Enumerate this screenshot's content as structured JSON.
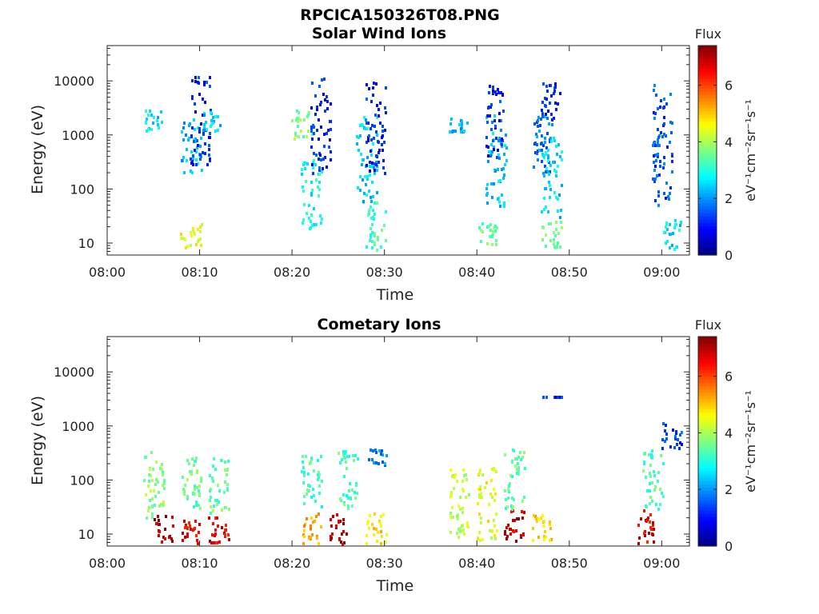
{
  "figure": {
    "title": "RPCICA150326T08.PNG"
  },
  "chart_data": [
    {
      "type": "heatmap",
      "title": "Solar Wind Ions",
      "xlabel": "Time",
      "ylabel": "Energy (eV)",
      "x_ticks": [
        "08:00",
        "08:10",
        "08:20",
        "08:30",
        "08:40",
        "08:50",
        "09:00"
      ],
      "xlim_minutes_after_0800": [
        0,
        63
      ],
      "y_scale": "log",
      "y_ticks": [
        "10",
        "100",
        "1000",
        "10000"
      ],
      "ylim": [
        6,
        45000
      ],
      "colorbar": {
        "title": "Flux",
        "unit": "eV⁻¹cm⁻²sr⁻¹s⁻¹",
        "ticks": [
          "0",
          "2",
          "4",
          "6"
        ],
        "range": [
          0,
          7.4
        ],
        "colormap": "jet"
      },
      "data_clusters": [
        {
          "time": "08:05",
          "energy_min": 1200,
          "energy_max": 3000,
          "flux": 2.6
        },
        {
          "time": "08:09",
          "energy_min": 200,
          "energy_max": 2000,
          "flux": 2.3
        },
        {
          "time": "08:09",
          "energy_min": 8,
          "energy_max": 25,
          "flux": 4.5
        },
        {
          "time": "08:10",
          "energy_min": 300,
          "energy_max": 13000,
          "flux": 1.2
        },
        {
          "time": "08:11",
          "energy_min": 1200,
          "energy_max": 3000,
          "flux": 2.4
        },
        {
          "time": "08:21",
          "energy_min": 800,
          "energy_max": 3000,
          "flux": 3.6
        },
        {
          "time": "08:22",
          "energy_min": 20,
          "energy_max": 400,
          "flux": 2.8
        },
        {
          "time": "08:23",
          "energy_min": 200,
          "energy_max": 13000,
          "flux": 1.2
        },
        {
          "time": "08:28",
          "energy_min": 60,
          "energy_max": 2500,
          "flux": 2.5
        },
        {
          "time": "08:29",
          "energy_min": 8,
          "energy_max": 60,
          "flux": 3.2
        },
        {
          "time": "08:29",
          "energy_min": 200,
          "energy_max": 12000,
          "flux": 1.2
        },
        {
          "time": "08:38",
          "energy_min": 1200,
          "energy_max": 2200,
          "flux": 2.3
        },
        {
          "time": "08:42",
          "energy_min": 50,
          "energy_max": 2500,
          "flux": 2.3
        },
        {
          "time": "08:42",
          "energy_min": 400,
          "energy_max": 9000,
          "flux": 1.2
        },
        {
          "time": "08:41",
          "energy_min": 10,
          "energy_max": 30,
          "flux": 3.5
        },
        {
          "time": "08:47",
          "energy_min": 200,
          "energy_max": 3000,
          "flux": 1.8
        },
        {
          "time": "08:48",
          "energy_min": 30,
          "energy_max": 1000,
          "flux": 2.5
        },
        {
          "time": "08:48",
          "energy_min": 8,
          "energy_max": 30,
          "flux": 3.6
        },
        {
          "time": "08:48",
          "energy_min": 2000,
          "energy_max": 10000,
          "flux": 1.2
        },
        {
          "time": "09:00",
          "energy_min": 50,
          "energy_max": 10000,
          "flux": 1.5
        },
        {
          "time": "09:01",
          "energy_min": 8,
          "energy_max": 30,
          "flux": 2.6
        }
      ]
    },
    {
      "type": "heatmap",
      "title": "Cometary Ions",
      "xlabel": "Time",
      "ylabel": "Energy (eV)",
      "x_ticks": [
        "08:00",
        "08:10",
        "08:20",
        "08:30",
        "08:40",
        "08:50",
        "09:00"
      ],
      "xlim_minutes_after_0800": [
        0,
        63
      ],
      "y_scale": "log",
      "y_ticks": [
        "10",
        "100",
        "1000",
        "10000"
      ],
      "ylim": [
        6,
        45000
      ],
      "colorbar": {
        "title": "Flux",
        "unit": "eV⁻¹cm⁻²sr⁻¹s⁻¹",
        "ticks": [
          "0",
          "2",
          "4",
          "6"
        ],
        "range": [
          0,
          7.4
        ],
        "colormap": "jet"
      },
      "data_clusters": [
        {
          "time": "08:05",
          "energy_min": 20,
          "energy_max": 400,
          "flux": 3.8
        },
        {
          "time": "08:06",
          "energy_min": 6,
          "energy_max": 25,
          "flux": 7.0
        },
        {
          "time": "08:09",
          "energy_min": 6,
          "energy_max": 20,
          "flux": 6.5
        },
        {
          "time": "08:09",
          "energy_min": 25,
          "energy_max": 300,
          "flux": 3.5
        },
        {
          "time": "08:12",
          "energy_min": 7,
          "energy_max": 25,
          "flux": 6.6
        },
        {
          "time": "08:12",
          "energy_min": 25,
          "energy_max": 300,
          "flux": 3.5
        },
        {
          "time": "08:22",
          "energy_min": 7,
          "energy_max": 25,
          "flux": 5.2
        },
        {
          "time": "08:22",
          "energy_min": 30,
          "energy_max": 300,
          "flux": 3.2
        },
        {
          "time": "08:25",
          "energy_min": 6,
          "energy_max": 25,
          "flux": 7.0
        },
        {
          "time": "08:26",
          "energy_min": 30,
          "energy_max": 400,
          "flux": 3.3
        },
        {
          "time": "08:29",
          "energy_min": 6,
          "energy_max": 25,
          "flux": 4.8
        },
        {
          "time": "08:29",
          "energy_min": 200,
          "energy_max": 400,
          "flux": 2.0
        },
        {
          "time": "08:38",
          "energy_min": 8,
          "energy_max": 200,
          "flux": 4.2
        },
        {
          "time": "08:41",
          "energy_min": 8,
          "energy_max": 200,
          "flux": 4.5
        },
        {
          "time": "08:44",
          "energy_min": 6,
          "energy_max": 30,
          "flux": 6.8
        },
        {
          "time": "08:44",
          "energy_min": 30,
          "energy_max": 400,
          "flux": 3.5
        },
        {
          "time": "08:47",
          "energy_min": 8,
          "energy_max": 25,
          "flux": 5.0
        },
        {
          "time": "08:48",
          "energy_min": 3600,
          "energy_max": 3600,
          "flux": 1.2
        },
        {
          "time": "08:58",
          "energy_min": 6,
          "energy_max": 30,
          "flux": 6.6
        },
        {
          "time": "08:59",
          "energy_min": 30,
          "energy_max": 400,
          "flux": 3.3
        },
        {
          "time": "09:01",
          "energy_min": 400,
          "energy_max": 1200,
          "flux": 1.4
        }
      ]
    }
  ]
}
